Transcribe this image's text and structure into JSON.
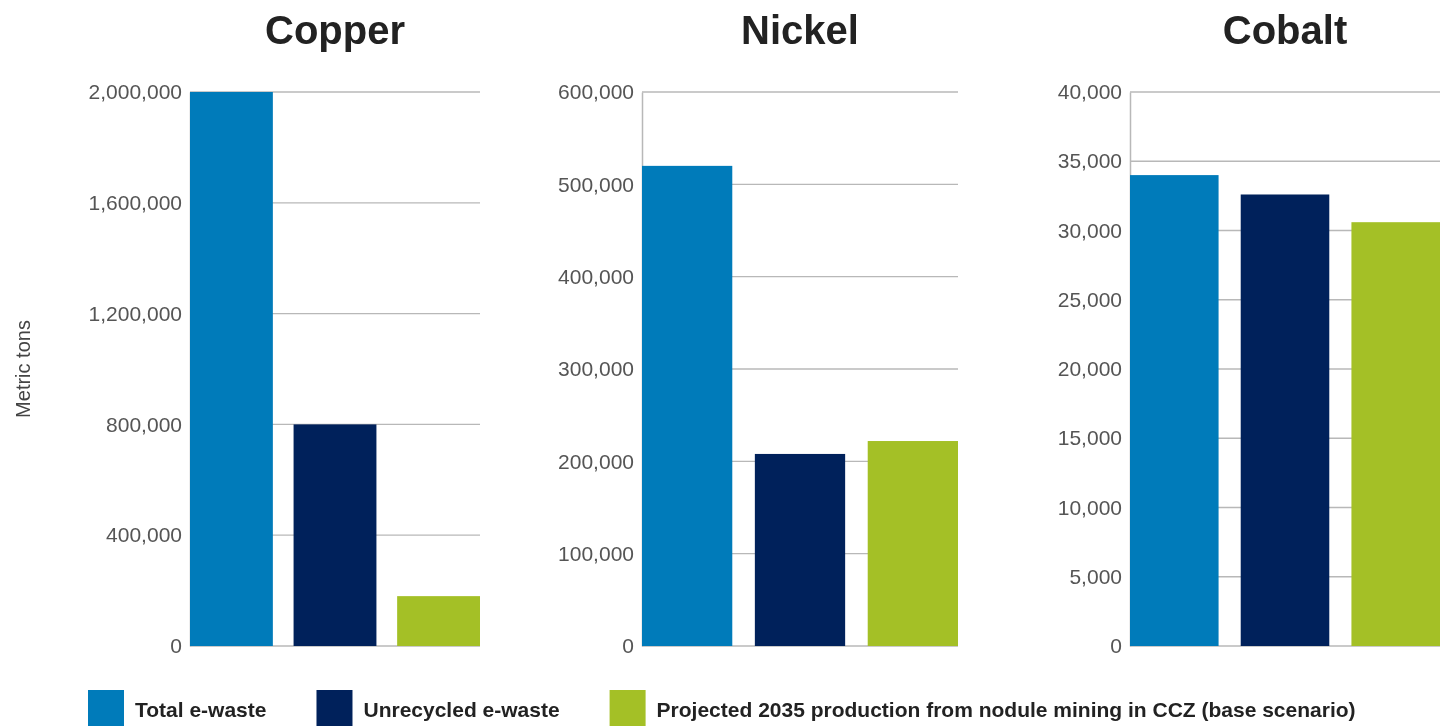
{
  "chart_data": [
    {
      "type": "bar",
      "title": "Copper",
      "ylabel": "Metric tons",
      "categories": [
        null
      ],
      "ylim": [
        0,
        2000000
      ],
      "yticks": [
        {
          "value": 0,
          "label": "0"
        },
        {
          "value": 400000,
          "label": "400,000"
        },
        {
          "value": 800000,
          "label": "800,000"
        },
        {
          "value": 1200000,
          "label": "1,200,000"
        },
        {
          "value": 1600000,
          "label": "1,600,000"
        },
        {
          "value": 2000000,
          "label": "2,000,000"
        }
      ],
      "grid": "y",
      "legend": "bottom",
      "series": [
        {
          "name": "Total e-waste",
          "color": "#007bba",
          "values": [
            2000000
          ]
        },
        {
          "name": "Unrecycled e-waste",
          "color": "#00215b",
          "values": [
            800000
          ]
        },
        {
          "name": "Projected 2035 production from nodule mining in CCZ (base scenario)",
          "color": "#a4c026",
          "values": [
            180000
          ]
        }
      ]
    },
    {
      "type": "bar",
      "title": "Nickel",
      "categories": [
        null
      ],
      "ylim": [
        0,
        600000
      ],
      "yticks": [
        {
          "value": 0,
          "label": "0"
        },
        {
          "value": 100000,
          "label": "100,000"
        },
        {
          "value": 200000,
          "label": "200,000"
        },
        {
          "value": 300000,
          "label": "300,000"
        },
        {
          "value": 400000,
          "label": "400,000"
        },
        {
          "value": 500000,
          "label": "500,000"
        },
        {
          "value": 600000,
          "label": "600,000"
        }
      ],
      "grid": "y",
      "series": [
        {
          "color": "#007bba",
          "values": [
            520000
          ]
        },
        {
          "color": "#00215b",
          "values": [
            208000
          ]
        },
        {
          "color": "#a4c026",
          "values": [
            222000
          ]
        }
      ]
    },
    {
      "type": "bar",
      "title": "Cobalt",
      "categories": [
        null
      ],
      "ylim": [
        0,
        40000
      ],
      "yticks": [
        {
          "value": 0,
          "label": "0"
        },
        {
          "value": 5000,
          "label": "5,000"
        },
        {
          "value": 10000,
          "label": "10,000"
        },
        {
          "value": 15000,
          "label": "15,000"
        },
        {
          "value": 20000,
          "label": "20,000"
        },
        {
          "value": 25000,
          "label": "25,000"
        },
        {
          "value": 30000,
          "label": "30,000"
        },
        {
          "value": 35000,
          "label": "35,000"
        },
        {
          "value": 40000,
          "label": "40,000"
        }
      ],
      "grid": "y",
      "series": [
        {
          "color": "#007bba",
          "values": [
            34000
          ]
        },
        {
          "color": "#00215b",
          "values": [
            32600
          ]
        },
        {
          "color": "#a4c026",
          "values": [
            30600
          ]
        }
      ]
    }
  ]
}
